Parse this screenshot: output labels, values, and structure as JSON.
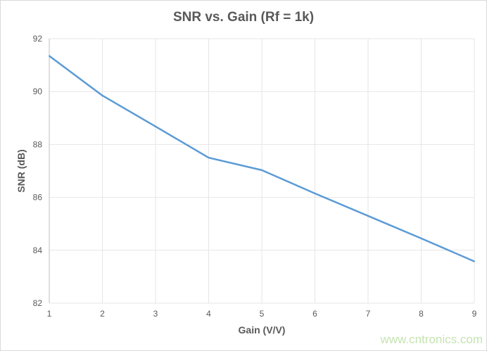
{
  "chart_data": {
    "type": "line",
    "title": "SNR vs. Gain (Rf = 1k)",
    "xlabel": "Gain (V/V)",
    "ylabel": "SNR (dB)",
    "x": [
      1,
      2,
      3,
      4,
      5,
      6,
      7,
      8,
      9
    ],
    "series": [
      {
        "values": [
          91.35,
          89.85,
          88.68,
          87.5,
          87.03,
          86.15,
          85.3,
          84.45,
          83.58
        ],
        "color": "#5b9bd5"
      }
    ],
    "xlim": [
      1,
      9
    ],
    "ylim": [
      82,
      92
    ],
    "xticks": [
      "1",
      "2",
      "3",
      "4",
      "5",
      "6",
      "7",
      "8",
      "9"
    ],
    "yticks": [
      "82",
      "84",
      "86",
      "88",
      "90",
      "92"
    ],
    "grid": true,
    "legend": "none"
  },
  "watermark": "www.cntronics.com"
}
